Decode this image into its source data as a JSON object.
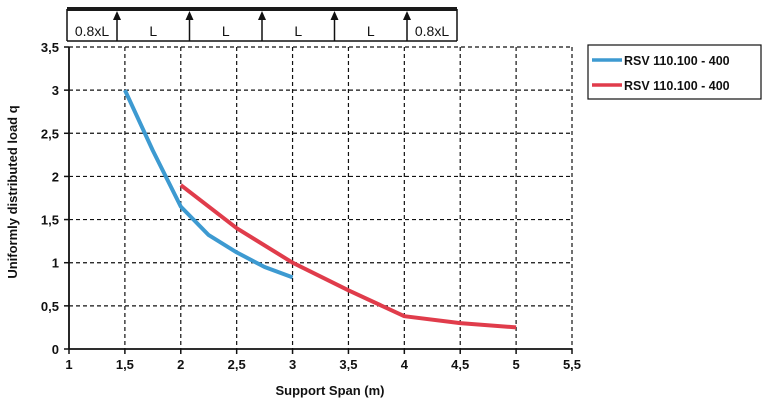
{
  "chart_data": {
    "type": "line",
    "title": "",
    "xlabel": "Support Span (m)",
    "ylabel": "Uniformly distributed load q",
    "xlim": [
      1,
      5.5
    ],
    "ylim": [
      0,
      3.5
    ],
    "x_ticks": [
      "1",
      "1,5",
      "2",
      "2,5",
      "3",
      "3,5",
      "4",
      "4,5",
      "5",
      "5,5"
    ],
    "y_ticks": [
      "0",
      "0,5",
      "1",
      "1,5",
      "2",
      "2,5",
      "3",
      "3,5"
    ],
    "grid": true,
    "legend_position": "right",
    "series": [
      {
        "name": "RSV 110.100 - 400",
        "color": "#3d9ad1",
        "x": [
          1.5,
          1.75,
          2.0,
          2.25,
          2.5,
          2.75,
          3.0
        ],
        "y": [
          3.0,
          2.3,
          1.65,
          1.32,
          1.12,
          0.95,
          0.83
        ]
      },
      {
        "name": "RSV 110.100 - 400",
        "color": "#e03c4b",
        "x": [
          2.0,
          2.5,
          3.0,
          3.5,
          4.0,
          4.5,
          5.0
        ],
        "y": [
          1.9,
          1.4,
          1.0,
          0.68,
          0.38,
          0.3,
          0.25
        ]
      }
    ],
    "support_diagram": {
      "labels": [
        "0.8xL",
        "L",
        "L",
        "L",
        "L",
        "0.8xL"
      ]
    }
  }
}
